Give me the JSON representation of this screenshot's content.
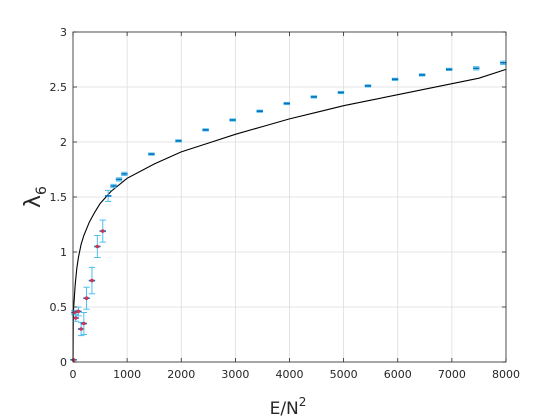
{
  "chart_data": {
    "type": "scatter",
    "title": "",
    "xlabel": "E/N",
    "xlabel_sup": "2",
    "ylabel": "λ",
    "ylabel_sub": "6",
    "xlim": [
      0,
      8000
    ],
    "ylim": [
      0,
      3
    ],
    "xticks": [
      0,
      1000,
      2000,
      3000,
      4000,
      5000,
      6000,
      7000,
      8000
    ],
    "yticks": [
      0,
      0.5,
      1,
      1.5,
      2,
      2.5,
      3
    ],
    "grid": true,
    "legend": "none",
    "series": [
      {
        "kind": "errorbar-points",
        "color": "#0072BD",
        "errorbar_color": "#4DBEEE",
        "points": [
          {
            "x": 10,
            "y": 0.02,
            "err": 0.0
          },
          {
            "x": 25,
            "y": 0.45,
            "err": 0.02
          },
          {
            "x": 50,
            "y": 0.4,
            "err": 0.03
          },
          {
            "x": 100,
            "y": 0.46,
            "err": 0.04
          },
          {
            "x": 150,
            "y": 0.3,
            "err": 0.06
          },
          {
            "x": 200,
            "y": 0.35,
            "err": 0.1
          },
          {
            "x": 250,
            "y": 0.58,
            "err": 0.1
          },
          {
            "x": 350,
            "y": 0.74,
            "err": 0.12
          },
          {
            "x": 450,
            "y": 1.05,
            "err": 0.1
          },
          {
            "x": 550,
            "y": 1.19,
            "err": 0.1
          },
          {
            "x": 650,
            "y": 1.51,
            "err": 0.05
          },
          {
            "x": 750,
            "y": 1.6,
            "err": 0.015
          },
          {
            "x": 850,
            "y": 1.66,
            "err": 0.015
          },
          {
            "x": 950,
            "y": 1.71,
            "err": 0.015
          },
          {
            "x": 1450,
            "y": 1.89,
            "err": 0.01
          },
          {
            "x": 1950,
            "y": 2.01,
            "err": 0.01
          },
          {
            "x": 2450,
            "y": 2.11,
            "err": 0.01
          },
          {
            "x": 2950,
            "y": 2.2,
            "err": 0.01
          },
          {
            "x": 3450,
            "y": 2.28,
            "err": 0.01
          },
          {
            "x": 3950,
            "y": 2.35,
            "err": 0.01
          },
          {
            "x": 4450,
            "y": 2.41,
            "err": 0.01
          },
          {
            "x": 4950,
            "y": 2.45,
            "err": 0.01
          },
          {
            "x": 5450,
            "y": 2.51,
            "err": 0.01
          },
          {
            "x": 5950,
            "y": 2.57,
            "err": 0.01
          },
          {
            "x": 6450,
            "y": 2.61,
            "err": 0.01
          },
          {
            "x": 6950,
            "y": 2.66,
            "err": 0.01
          },
          {
            "x": 7450,
            "y": 2.67,
            "err": 0.015
          },
          {
            "x": 7950,
            "y": 2.72,
            "err": 0.015
          }
        ],
        "highlight_color": "#D9304F",
        "highlight_x_max": 600
      },
      {
        "kind": "line",
        "color": "#000000",
        "x": [
          1,
          5,
          10,
          20,
          40,
          70,
          100,
          150,
          200,
          300,
          400,
          500,
          700,
          1000,
          1500,
          2000,
          2500,
          3000,
          3500,
          4000,
          4500,
          5000,
          5500,
          6000,
          6500,
          7000,
          7500,
          8000
        ],
        "y": [
          0.0,
          0.38,
          0.48,
          0.55,
          0.7,
          0.85,
          0.95,
          1.07,
          1.15,
          1.27,
          1.36,
          1.44,
          1.55,
          1.67,
          1.8,
          1.91,
          1.99,
          2.07,
          2.14,
          2.21,
          2.27,
          2.33,
          2.38,
          2.43,
          2.48,
          2.53,
          2.58,
          2.66
        ]
      }
    ]
  }
}
